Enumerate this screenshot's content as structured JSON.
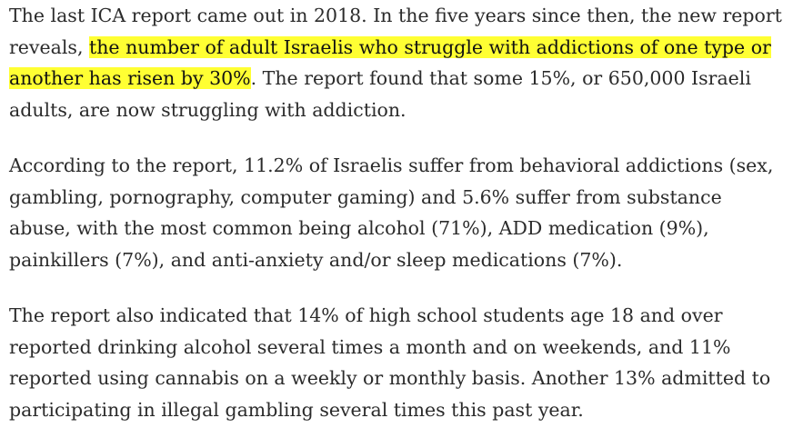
{
  "highlight_color": "#ffff33",
  "text_color": "#2b2b2b",
  "paragraphs": [
    {
      "before": "The last ICA report came out in 2018. In the five years since then, the new report reveals, ",
      "highlight": "the number of adult Israelis who struggle with addictions of one type or another has risen by 30%",
      "after": ". The report found that some 15%, or 650,000 Israeli adults, are now struggling with addiction."
    },
    {
      "text": "According to the report, 11.2% of Israelis suffer from behavioral addictions (sex, gambling, pornography, computer gaming) and 5.6% suffer from substance abuse, with the most common being alcohol (71%), ADD medication (9%), painkillers (7%), and anti-anxiety and/or sleep medications (7%)."
    },
    {
      "text": "The report also indicated that 14% of high school students age 18 and over reported drinking alcohol several times a month and on weekends, and 11% reported using cannabis on a weekly or monthly basis. Another 13% admitted to participating in illegal gambling several times this past year."
    }
  ]
}
